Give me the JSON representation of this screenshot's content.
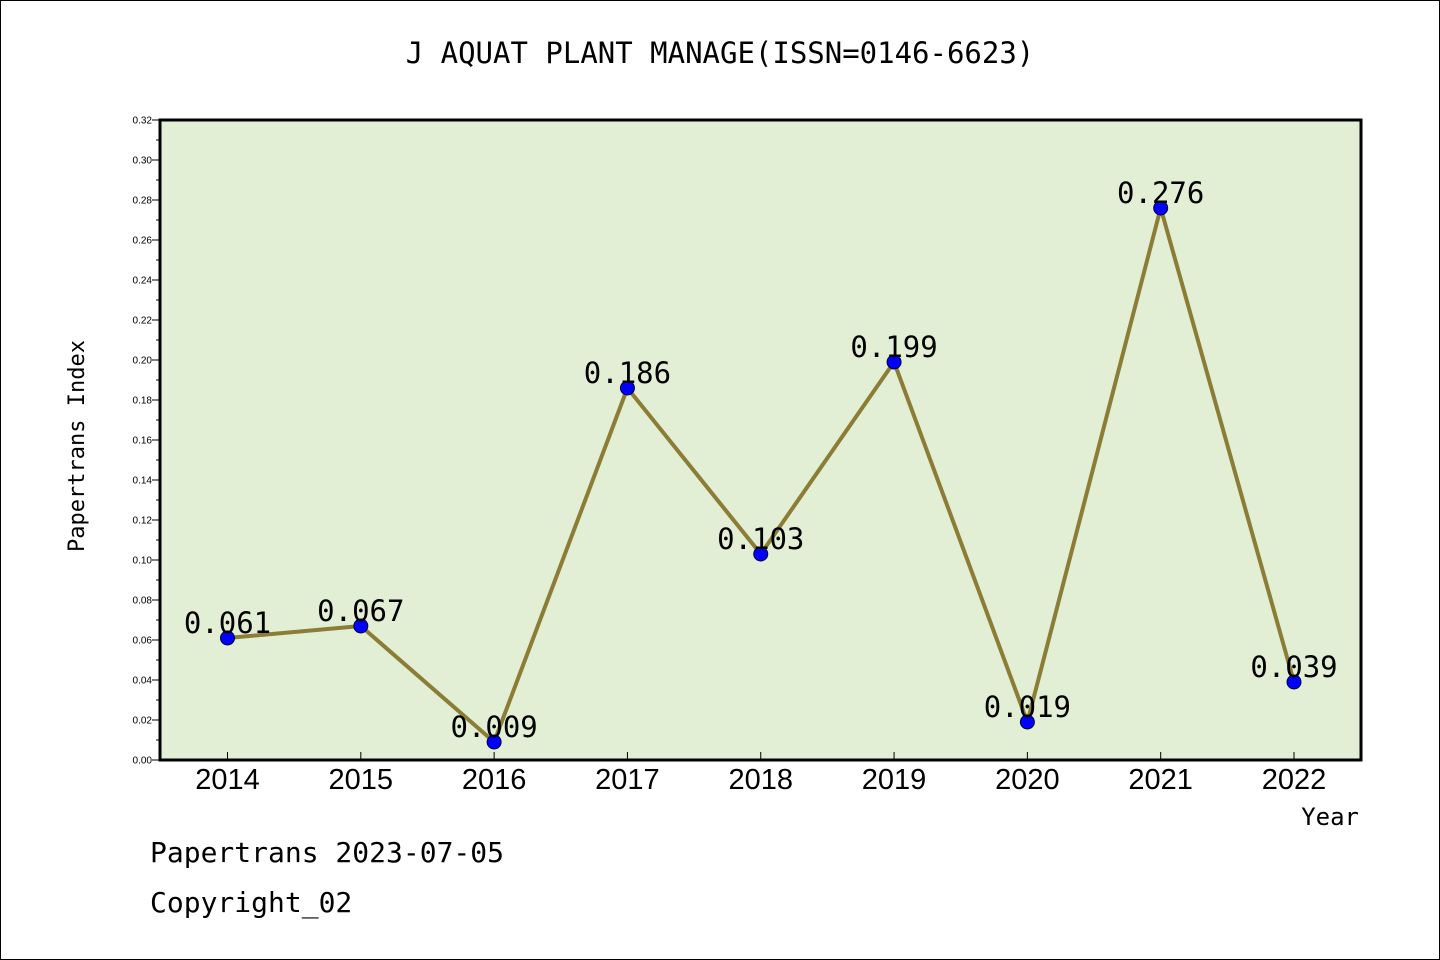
{
  "chart_data": {
    "type": "line",
    "title": "J AQUAT PLANT MANAGE(ISSN=0146-6623)",
    "xlabel": "Year",
    "ylabel": "Papertrans Index",
    "categories": [
      "2014",
      "2015",
      "2016",
      "2017",
      "2018",
      "2019",
      "2020",
      "2021",
      "2022"
    ],
    "values": [
      0.061,
      0.067,
      0.009,
      0.186,
      0.103,
      0.199,
      0.019,
      0.276,
      0.039
    ],
    "data_labels": [
      "0.061",
      "0.067",
      "0.009",
      "0.186",
      "0.103",
      "0.199",
      "0.019",
      "0.276",
      "0.039"
    ],
    "ylim": [
      0,
      0.32
    ],
    "ytick_labels": [
      "0.00",
      "0.02",
      "0.04",
      "0.06",
      "0.08",
      "0.10",
      "0.12",
      "0.14",
      "0.16",
      "0.18",
      "0.20",
      "0.22",
      "0.24",
      "0.26",
      "0.28",
      "0.30",
      "0.32"
    ],
    "grid": false,
    "legend": "none",
    "colors": {
      "plot_background": "#e2efd5",
      "line": "#8b7d35",
      "marker": "#0000ff",
      "axis": "#000000"
    }
  },
  "footer": {
    "date_text": "Papertrans 2023-07-05",
    "copyright_text": "Copyright_02"
  }
}
